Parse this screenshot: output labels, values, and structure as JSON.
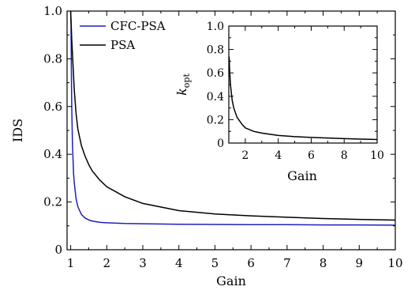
{
  "chart_data": [
    {
      "type": "line",
      "role": "main",
      "xlabel": "Gain",
      "ylabel": "IDS",
      "xlim": [
        0.9,
        10
      ],
      "ylim": [
        0,
        1.0
      ],
      "xticks": [
        1,
        2,
        3,
        4,
        5,
        6,
        7,
        8,
        9,
        10
      ],
      "yticks": [
        0,
        0.2,
        0.4,
        0.6,
        0.8,
        1.0
      ],
      "xtick_labels": [
        "1",
        "2",
        "3",
        "4",
        "5",
        "6",
        "7",
        "8",
        "9",
        "10"
      ],
      "ytick_labels": [
        "0",
        "0.2",
        "0.4",
        "0.6",
        "0.8",
        "1.0"
      ],
      "grid": false,
      "legend_position": "top-left",
      "series": [
        {
          "name": "CFC-PSA",
          "color": "#1f1fbf",
          "x": [
            1.0,
            1.01,
            1.02,
            1.03,
            1.05,
            1.08,
            1.1,
            1.15,
            1.2,
            1.3,
            1.4,
            1.5,
            1.6,
            1.8,
            2,
            2.5,
            3,
            4,
            5,
            6,
            7,
            8,
            9,
            10
          ],
          "y": [
            1.0,
            0.95,
            0.74,
            0.6,
            0.44,
            0.32,
            0.28,
            0.214,
            0.18,
            0.147,
            0.133,
            0.125,
            0.12,
            0.115,
            0.113,
            0.11,
            0.109,
            0.107,
            0.106,
            0.105,
            0.105,
            0.104,
            0.104,
            0.103
          ]
        },
        {
          "name": "PSA",
          "color": "#000000",
          "x": [
            1.0,
            1.01,
            1.02,
            1.03,
            1.05,
            1.08,
            1.1,
            1.15,
            1.2,
            1.3,
            1.4,
            1.5,
            1.6,
            1.8,
            2,
            2.5,
            3,
            4,
            5,
            6,
            7,
            8,
            9,
            10
          ],
          "y": [
            1.0,
            0.96,
            0.92,
            0.88,
            0.82,
            0.73,
            0.67,
            0.57,
            0.505,
            0.435,
            0.392,
            0.357,
            0.33,
            0.293,
            0.264,
            0.222,
            0.194,
            0.164,
            0.15,
            0.142,
            0.136,
            0.131,
            0.127,
            0.124
          ]
        }
      ]
    },
    {
      "type": "line",
      "role": "inset",
      "xlabel": "Gain",
      "ylabel": "k",
      "ylabel_subscript": "opt",
      "xlim": [
        1,
        10
      ],
      "ylim": [
        0,
        1.0
      ],
      "xticks": [
        2,
        4,
        6,
        8,
        10
      ],
      "yticks": [
        0,
        0.2,
        0.4,
        0.6,
        0.8,
        1.0
      ],
      "xtick_labels": [
        "2",
        "4",
        "6",
        "8",
        "10"
      ],
      "ytick_labels": [
        "0",
        "0.2",
        "0.4",
        "0.6",
        "0.8",
        "1.0"
      ],
      "grid": false,
      "series": [
        {
          "color": "#000000",
          "x": [
            1.02,
            1.05,
            1.1,
            1.2,
            1.3,
            1.5,
            1.8,
            2,
            2.5,
            3,
            4,
            5,
            6,
            7,
            8,
            9,
            10
          ],
          "y": [
            0.74,
            0.62,
            0.5,
            0.37,
            0.3,
            0.22,
            0.16,
            0.13,
            0.1,
            0.085,
            0.065,
            0.055,
            0.048,
            0.043,
            0.038,
            0.034,
            0.03
          ]
        }
      ]
    }
  ]
}
